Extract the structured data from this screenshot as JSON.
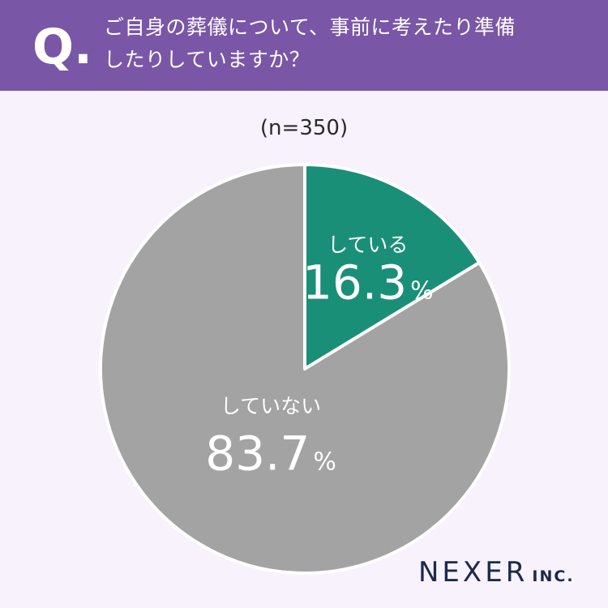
{
  "header": {
    "q_mark": "Q.",
    "question_line1": "ご自身の葬儀について、事前に考えたり準備",
    "question_line2": "したりしていますか？"
  },
  "sample_size": "(n=350)",
  "chart_data": {
    "type": "pie",
    "title": "",
    "categories": [
      "している",
      "していない"
    ],
    "values": [
      16.3,
      83.7
    ],
    "unit": "%",
    "colors": [
      "#1a8f77",
      "#a3a3a3"
    ],
    "start_angle_deg": 0,
    "direction": "clockwise"
  },
  "brand": {
    "name": "NEXER",
    "suffix": "INC."
  }
}
